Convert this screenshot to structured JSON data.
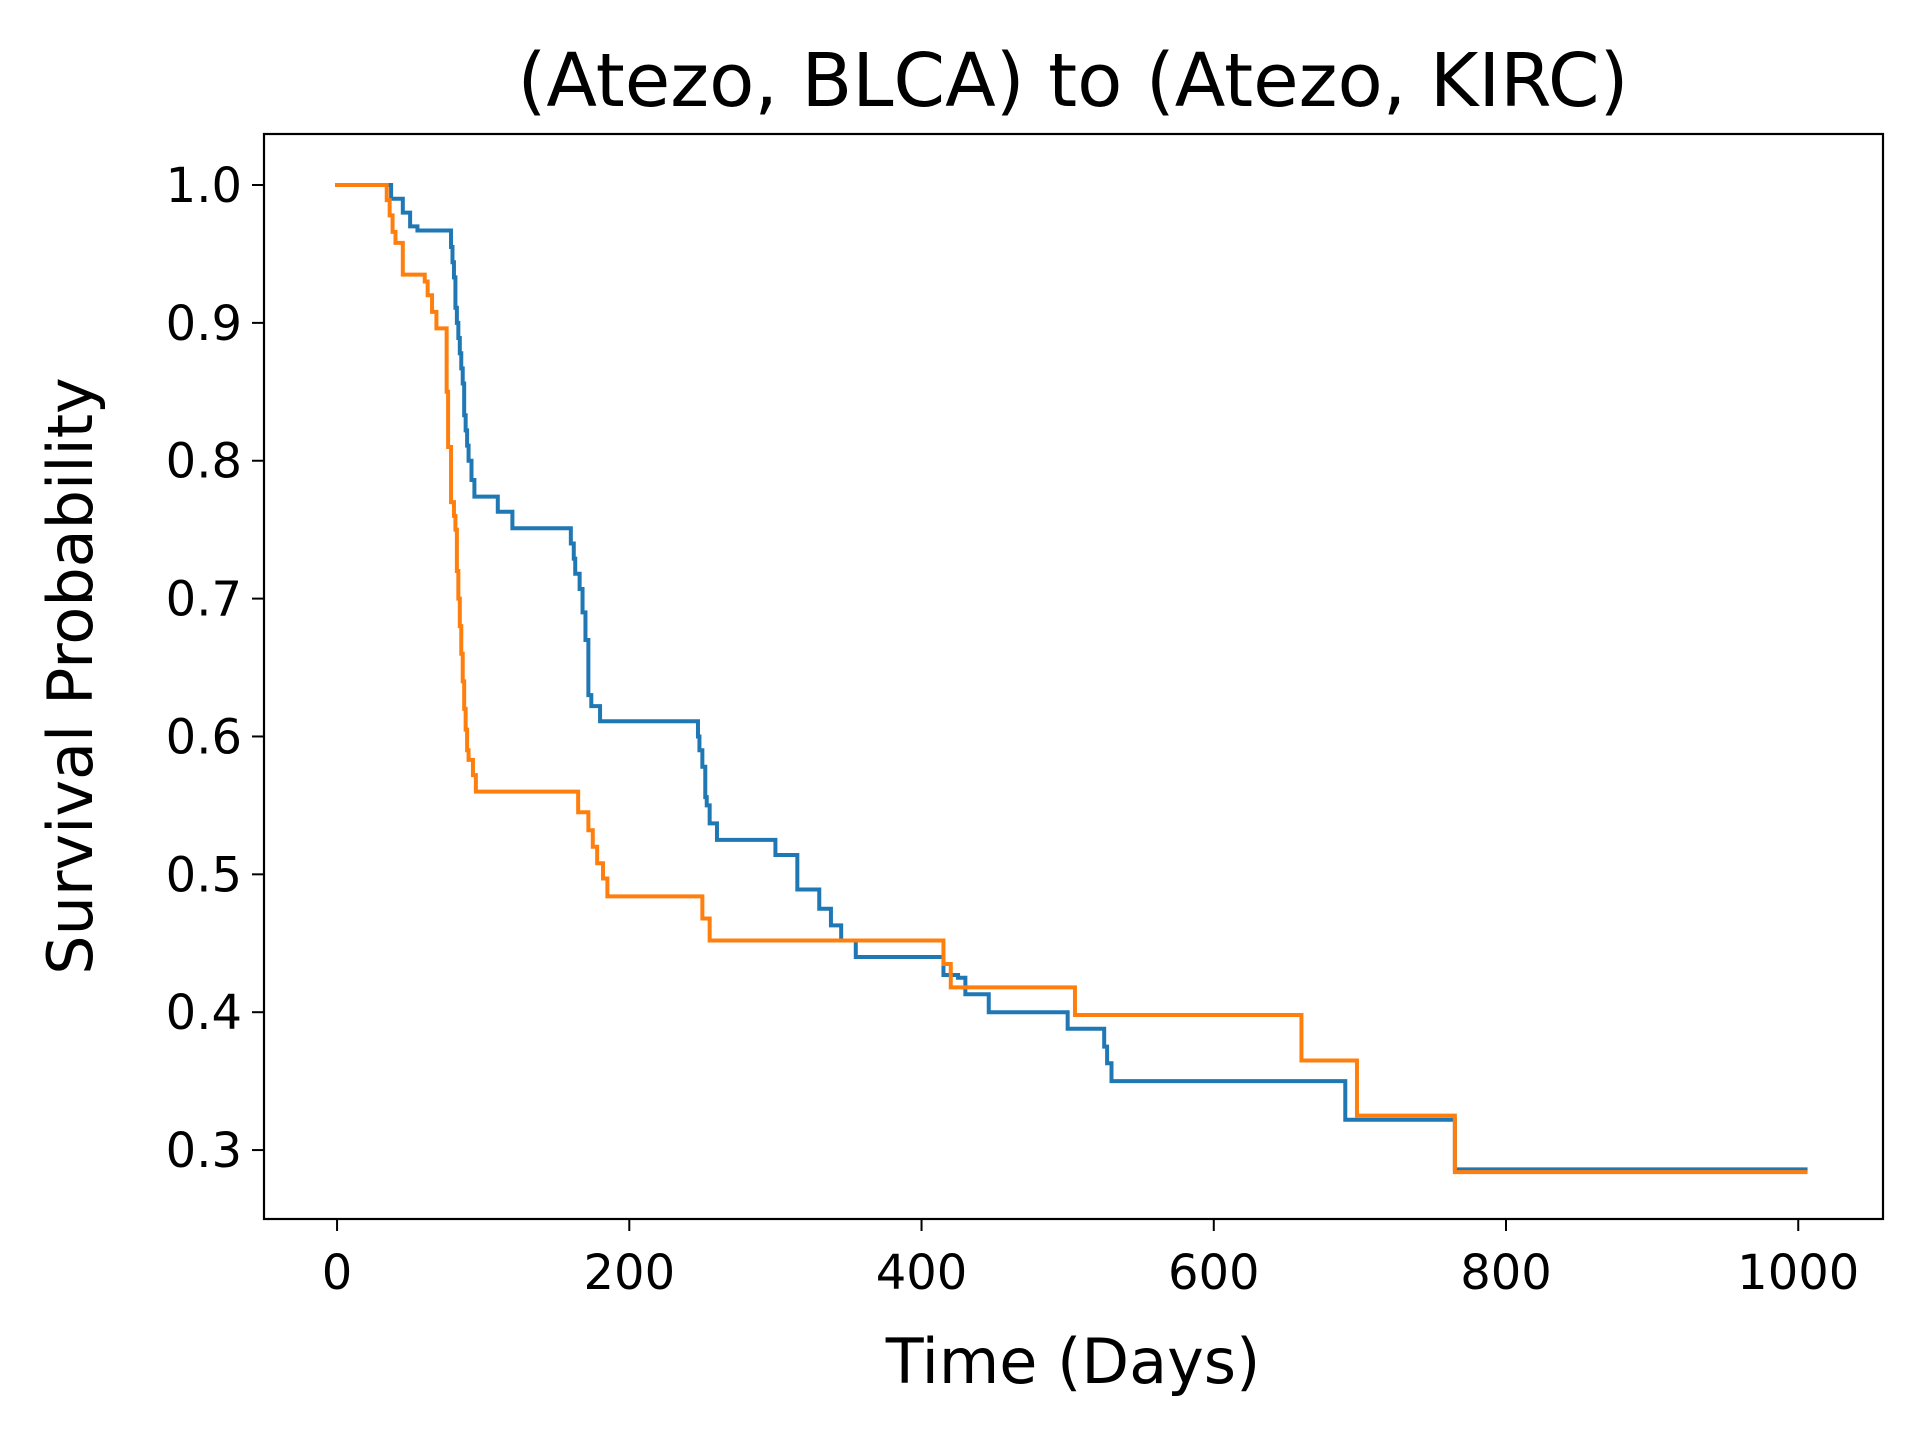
{
  "chart_data": {
    "type": "line",
    "step": "post",
    "title": "(Atezo, BLCA) to (Atezo, KIRC)",
    "xlabel": "Time (Days)",
    "ylabel": "Survival Probability",
    "xlim": [
      -50,
      1058
    ],
    "ylim": [
      0.25,
      1.037
    ],
    "xticks": [
      0,
      200,
      400,
      600,
      800,
      1000
    ],
    "yticks": [
      0.3,
      0.4,
      0.5,
      0.6,
      0.7,
      0.8,
      0.9,
      1.0
    ],
    "xtick_labels": [
      "0",
      "200",
      "400",
      "600",
      "800",
      "1000"
    ],
    "ytick_labels": [
      "0.3",
      "0.4",
      "0.5",
      "0.6",
      "0.7",
      "0.8",
      "0.9",
      "1.0"
    ],
    "grid": false,
    "legend": false,
    "series": [
      {
        "color": "#1f77b4",
        "x": [
          0,
          37,
          40,
          45,
          50,
          55,
          78,
          79,
          80,
          81,
          82,
          83,
          84,
          85,
          86,
          87,
          88,
          89,
          90,
          92,
          94,
          110,
          120,
          160,
          162,
          163,
          166,
          168,
          170,
          172,
          174,
          180,
          247,
          248,
          250,
          252,
          253,
          255,
          260,
          300,
          315,
          330,
          338,
          345,
          355,
          415,
          418,
          425,
          430,
          446,
          500,
          525,
          527,
          530,
          690,
          765,
          1005
        ],
        "y": [
          1.0,
          0.99,
          0.99,
          0.98,
          0.97,
          0.967,
          0.955,
          0.944,
          0.933,
          0.911,
          0.9,
          0.889,
          0.878,
          0.867,
          0.856,
          0.833,
          0.822,
          0.811,
          0.8,
          0.786,
          0.774,
          0.763,
          0.751,
          0.74,
          0.729,
          0.718,
          0.707,
          0.69,
          0.67,
          0.63,
          0.622,
          0.611,
          0.6,
          0.59,
          0.578,
          0.556,
          0.55,
          0.537,
          0.525,
          0.514,
          0.489,
          0.475,
          0.463,
          0.452,
          0.44,
          0.427,
          0.427,
          0.425,
          0.413,
          0.4,
          0.388,
          0.375,
          0.363,
          0.35,
          0.322,
          0.286,
          0.286
        ]
      },
      {
        "color": "#ff7f0e",
        "x": [
          0,
          34,
          36,
          38,
          40,
          45,
          60,
          62,
          65,
          68,
          75,
          76,
          78,
          80,
          81,
          82,
          83,
          84,
          85,
          86,
          87,
          88,
          89,
          90,
          93,
          95,
          165,
          172,
          175,
          178,
          182,
          185,
          250,
          255,
          415,
          420,
          505,
          660,
          698,
          765,
          1005
        ],
        "y": [
          1.0,
          0.989,
          0.978,
          0.966,
          0.958,
          0.935,
          0.93,
          0.92,
          0.908,
          0.896,
          0.85,
          0.81,
          0.77,
          0.76,
          0.75,
          0.72,
          0.7,
          0.68,
          0.66,
          0.64,
          0.62,
          0.605,
          0.59,
          0.583,
          0.572,
          0.56,
          0.545,
          0.532,
          0.52,
          0.508,
          0.497,
          0.484,
          0.468,
          0.452,
          0.435,
          0.418,
          0.398,
          0.365,
          0.325,
          0.284,
          0.284
        ]
      }
    ]
  }
}
